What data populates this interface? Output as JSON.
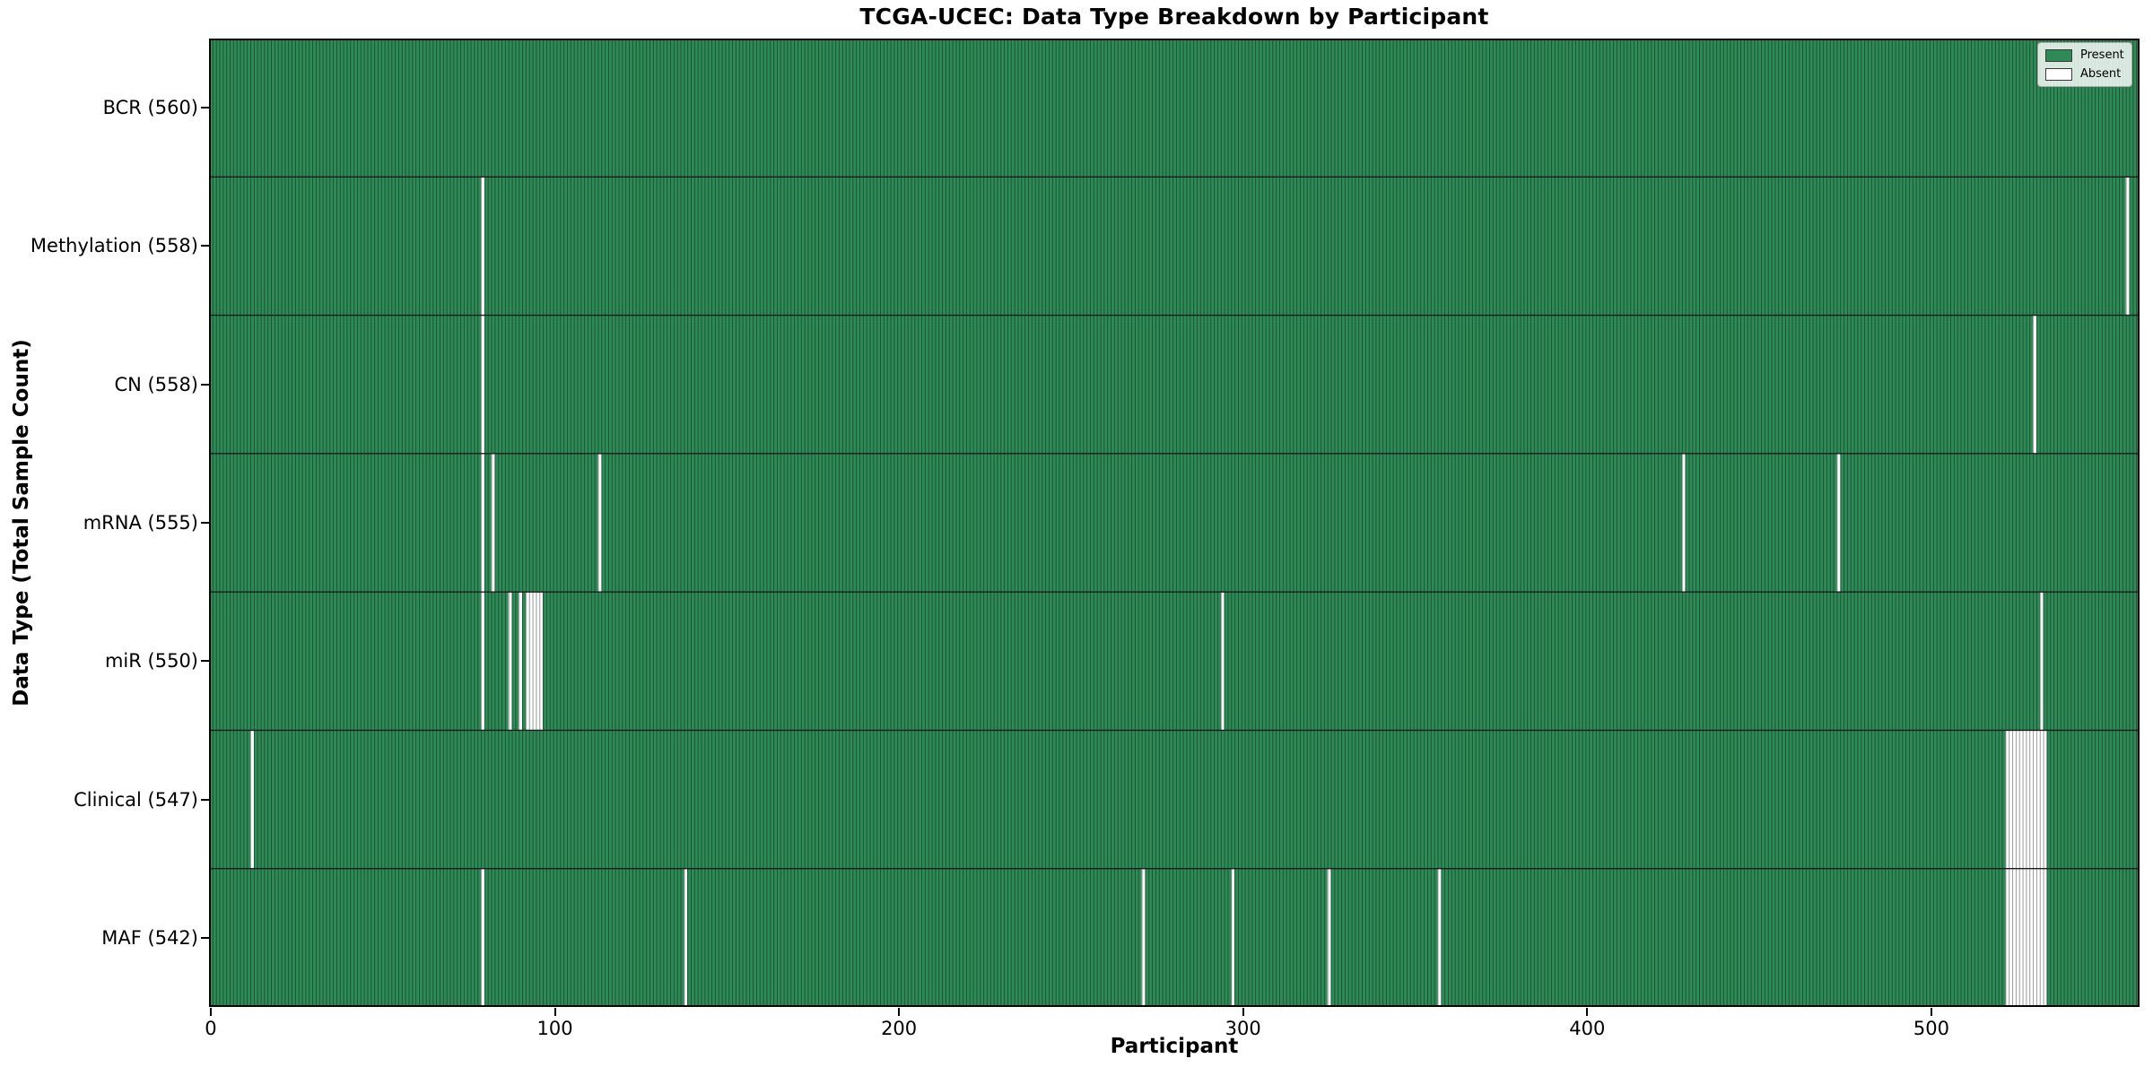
{
  "chart_data": {
    "type": "heatmap",
    "title": "TCGA-UCEC: Data Type Breakdown by Participant",
    "xlabel": "Participant",
    "ylabel": "Data Type (Total Sample Count)",
    "n_participants": 560,
    "x_ticks": [
      0,
      100,
      200,
      300,
      400,
      500
    ],
    "grid": false,
    "colors": {
      "present": "#2e8b57",
      "absent": "#ffffff",
      "bar_edge": "rgba(0,0,0,0.40)",
      "row_separator": "#1c1c1c",
      "spine": "#000000"
    },
    "legend": {
      "position": "upper-right",
      "entries": [
        {
          "label": "Present",
          "swatch": "#2e8b57"
        },
        {
          "label": "Absent",
          "swatch": "#ffffff"
        }
      ]
    },
    "rows": [
      {
        "label": "BCR (560)",
        "data_type": "BCR",
        "present_count": 560,
        "absent_participants": []
      },
      {
        "label": "Methylation (558)",
        "data_type": "Methylation",
        "present_count": 558,
        "absent_participants": [
          79,
          557
        ]
      },
      {
        "label": "CN (558)",
        "data_type": "CN",
        "present_count": 558,
        "absent_participants": [
          79,
          530
        ]
      },
      {
        "label": "mRNA (555)",
        "data_type": "mRNA",
        "present_count": 555,
        "absent_participants": [
          79,
          82,
          113,
          428,
          473
        ]
      },
      {
        "label": "miR (550)",
        "data_type": "miR",
        "present_count": 550,
        "absent_participants": [
          79,
          87,
          90,
          92,
          93,
          94,
          95,
          96,
          294,
          532
        ]
      },
      {
        "label": "Clinical (547)",
        "data_type": "Clinical",
        "present_count": 547,
        "absent_participants": [
          12,
          522,
          523,
          524,
          525,
          526,
          527,
          528,
          529,
          530,
          531,
          532,
          533
        ]
      },
      {
        "label": "MAF (542)",
        "data_type": "MAF",
        "present_count": 542,
        "absent_participants": [
          79,
          138,
          271,
          297,
          325,
          357,
          522,
          523,
          524,
          525,
          526,
          527,
          528,
          529,
          530,
          531,
          532,
          533
        ]
      }
    ]
  }
}
